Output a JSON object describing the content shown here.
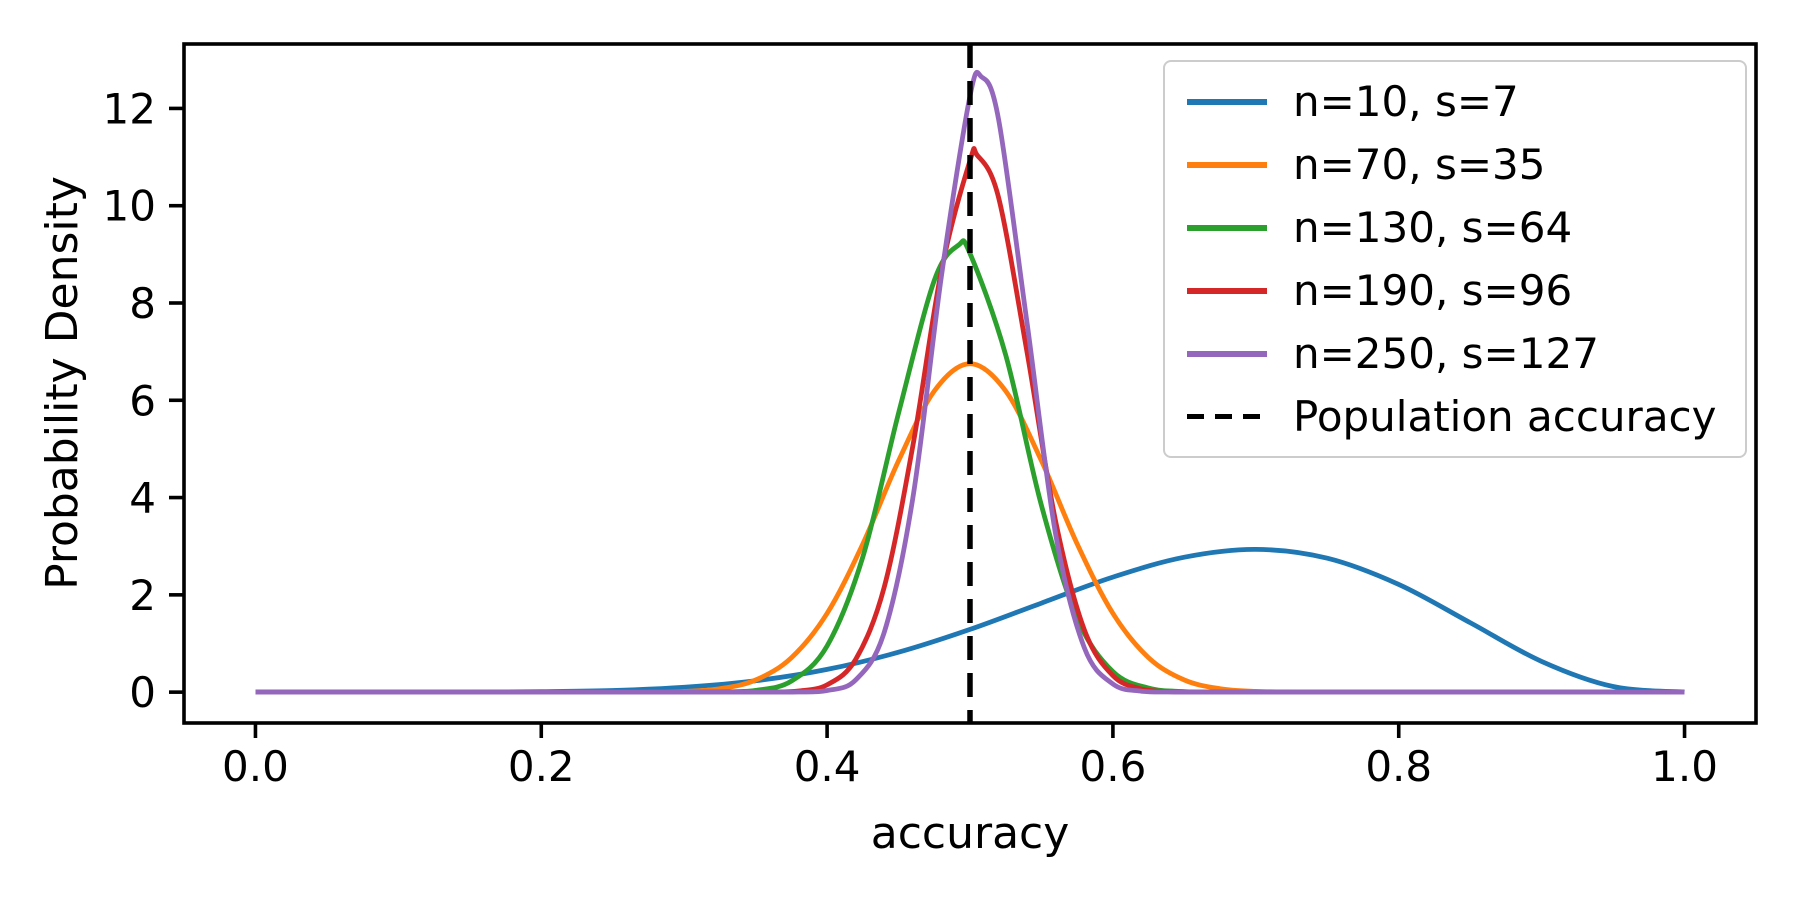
{
  "chart_data": {
    "type": "line",
    "title": "",
    "xlabel": "accuracy",
    "ylabel": "Probability Density",
    "xlim": [
      -0.05,
      1.05
    ],
    "ylim": [
      -0.6345,
      13.3245
    ],
    "grid": false,
    "legend_position": "upper right",
    "axis_color": "#000000",
    "xticks": [
      {
        "v": 0.0,
        "label": "0.0"
      },
      {
        "v": 0.2,
        "label": "0.2"
      },
      {
        "v": 0.4,
        "label": "0.4"
      },
      {
        "v": 0.6,
        "label": "0.6"
      },
      {
        "v": 0.8,
        "label": "0.8"
      },
      {
        "v": 1.0,
        "label": "1.0"
      }
    ],
    "yticks": [
      {
        "v": 0,
        "label": "0"
      },
      {
        "v": 2,
        "label": "2"
      },
      {
        "v": 4,
        "label": "4"
      },
      {
        "v": 6,
        "label": "6"
      },
      {
        "v": 8,
        "label": "8"
      },
      {
        "v": 10,
        "label": "10"
      },
      {
        "v": 12,
        "label": "12"
      }
    ],
    "series": [
      {
        "name": "n=10, s=7",
        "color": "#1f77b4",
        "peak": {
          "x": 0.7,
          "y": 2.94
        },
        "x": [
          0,
          0.05,
          0.1,
          0.15,
          0.2,
          0.25,
          0.3,
          0.35,
          0.4,
          0.45,
          0.5,
          0.55,
          0.6,
          0.65,
          0.7,
          0.75,
          0.8,
          0.85,
          0.9,
          0.95,
          1.0
        ],
        "y": [
          0,
          0,
          0.0001,
          0.0014,
          0.0087,
          0.034,
          0.099,
          0.233,
          0.467,
          0.821,
          1.289,
          1.831,
          2.365,
          2.774,
          2.935,
          2.753,
          2.215,
          1.428,
          0.631,
          0.115,
          0
        ]
      },
      {
        "name": "n=70, s=35",
        "color": "#ff7f0e",
        "peak": {
          "x": 0.5,
          "y": 6.75
        },
        "x": [
          0,
          0.1,
          0.2,
          0.25,
          0.275,
          0.3,
          0.325,
          0.35,
          0.375,
          0.4,
          0.425,
          0.45,
          0.475,
          0.5,
          0.525,
          0.55,
          0.575,
          0.6,
          0.625,
          0.65,
          0.675,
          0.7,
          0.725,
          0.75,
          0.8,
          0.9,
          1.0
        ],
        "y": [
          0,
          0,
          0,
          0.001,
          0.002,
          0.015,
          0.07,
          0.249,
          0.707,
          1.618,
          3.046,
          4.754,
          6.19,
          6.753,
          6.19,
          4.754,
          3.046,
          1.618,
          0.707,
          0.249,
          0.07,
          0.015,
          0.002,
          0.001,
          0,
          0,
          0
        ]
      },
      {
        "name": "n=130, s=64",
        "color": "#2ca02c",
        "peak": {
          "x": 0.492,
          "y": 9.19
        },
        "x": [
          0,
          0.1,
          0.2,
          0.275,
          0.3,
          0.325,
          0.35,
          0.375,
          0.4,
          0.425,
          0.45,
          0.475,
          0.492,
          0.5,
          0.525,
          0.55,
          0.575,
          0.6,
          0.625,
          0.65,
          0.675,
          0.7,
          0.8,
          0.9,
          1.0
        ],
        "y": [
          0,
          0,
          0,
          0,
          0.0003,
          0.004,
          0.036,
          0.227,
          0.951,
          2.779,
          5.732,
          8.465,
          9.19,
          9.017,
          6.931,
          3.834,
          1.517,
          0.423,
          0.082,
          0.011,
          0.001,
          0,
          0,
          0,
          0
        ]
      },
      {
        "name": "n=190, s=96",
        "color": "#d62728",
        "peak": {
          "x": 0.505,
          "y": 11.04
        },
        "x": [
          0,
          0.1,
          0.2,
          0.3,
          0.34,
          0.36,
          0.38,
          0.4,
          0.42,
          0.44,
          0.46,
          0.48,
          0.5,
          0.505,
          0.52,
          0.54,
          0.56,
          0.58,
          0.6,
          0.62,
          0.64,
          0.66,
          0.7,
          0.8,
          0.9,
          1.0
        ],
        "y": [
          0,
          0,
          0,
          0,
          0.001,
          0.003,
          0.024,
          0.151,
          0.674,
          2.164,
          5.058,
          8.663,
          10.926,
          11.04,
          10.166,
          6.97,
          3.506,
          1.284,
          0.339,
          0.064,
          0.008,
          0.001,
          0,
          0,
          0,
          0
        ]
      },
      {
        "name": "n=250, s=127",
        "color": "#9467bd",
        "peak": {
          "x": 0.508,
          "y": 12.65
        },
        "x": [
          0,
          0.1,
          0.2,
          0.3,
          0.36,
          0.38,
          0.4,
          0.42,
          0.44,
          0.46,
          0.48,
          0.5,
          0.508,
          0.52,
          0.54,
          0.56,
          0.58,
          0.6,
          0.62,
          0.64,
          0.66,
          0.7,
          0.8,
          0.9,
          1.0
        ],
        "y": [
          0,
          0,
          0,
          0,
          0.001,
          0.003,
          0.033,
          0.251,
          1.234,
          3.986,
          8.548,
          12.254,
          12.65,
          11.773,
          7.569,
          3.239,
          0.914,
          0.168,
          0.02,
          0.002,
          0,
          0,
          0,
          0,
          0
        ]
      }
    ],
    "vline": {
      "name": "Population accuracy",
      "x": 0.5,
      "color": "#000000",
      "style": "dashed"
    }
  }
}
